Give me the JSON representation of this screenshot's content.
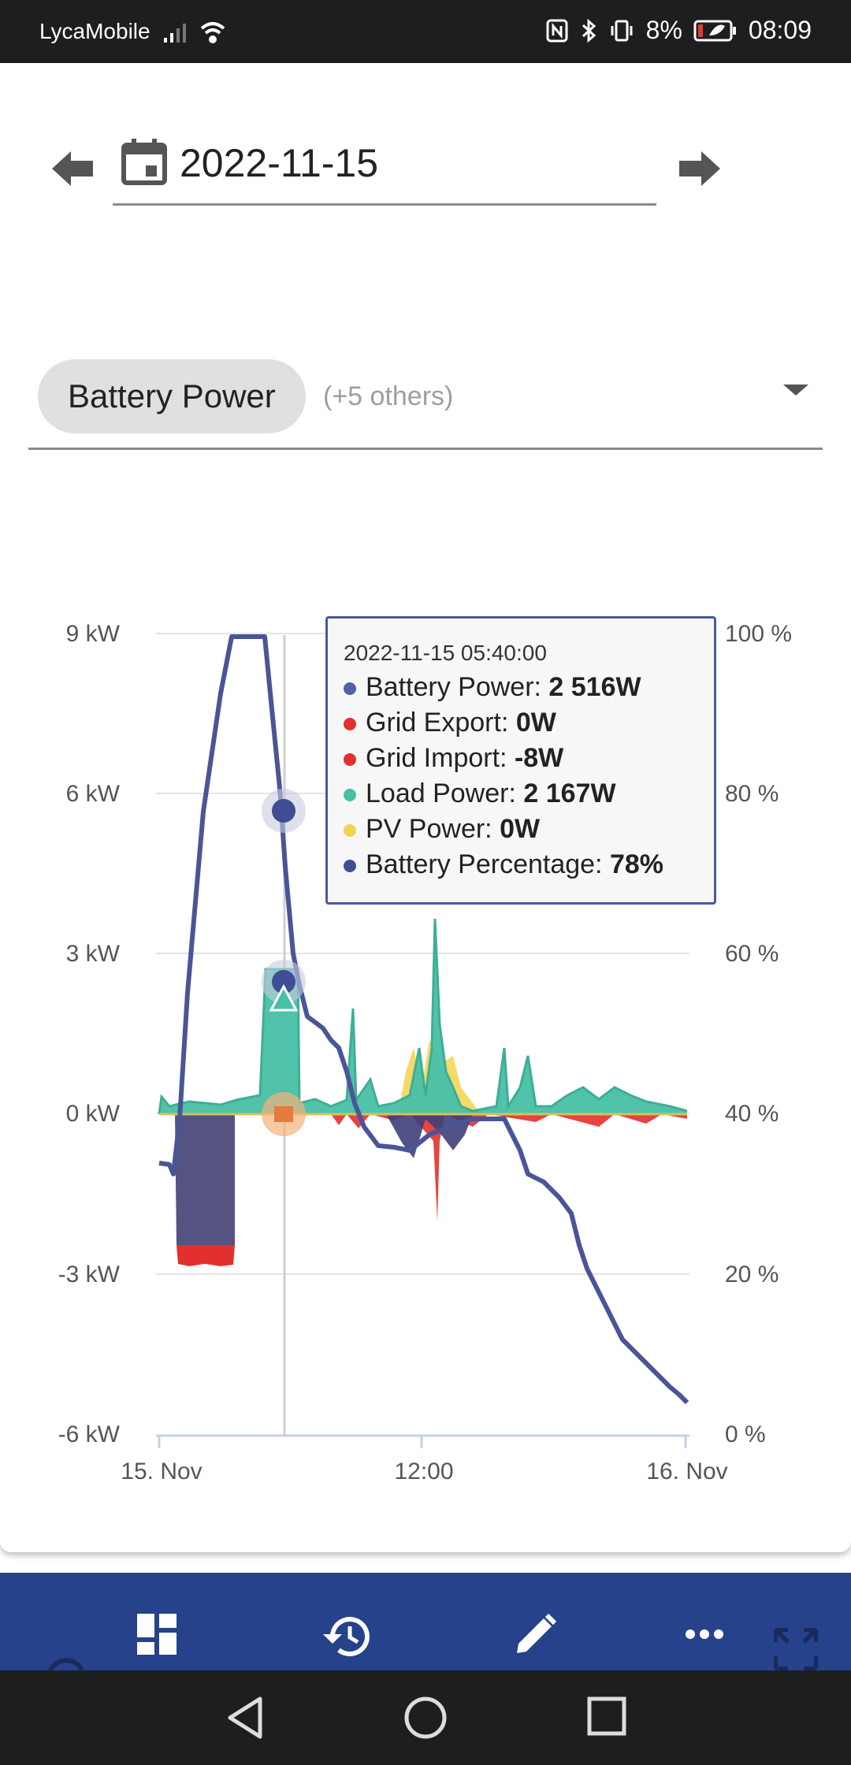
{
  "status_bar": {
    "carrier": "LycaMobile",
    "battery_percent": "8%",
    "time": "08:09",
    "icons": [
      "signal-icon",
      "wifi-icon",
      "nfc-icon",
      "bluetooth-icon",
      "vibrate-icon",
      "battery-saver-icon"
    ]
  },
  "date_nav": {
    "date": "2022-11-15",
    "prev_icon": "arrow-left-icon",
    "next_icon": "arrow-right-icon",
    "calendar_icon": "calendar-icon"
  },
  "entity_select": {
    "chip_label": "Battery Power",
    "others_label": "(+5 others)",
    "caret_icon": "dropdown-caret-icon"
  },
  "chart_data": {
    "type": "line",
    "y_left": {
      "ticks": [
        "9 kW",
        "6 kW",
        "3 kW",
        "0 kW",
        "-3 kW",
        "-6 kW"
      ],
      "ylim": [
        -6,
        9
      ]
    },
    "y_right": {
      "ticks": [
        "100 %",
        "80 %",
        "60 %",
        "40 %",
        "20 %",
        "0 %"
      ],
      "ylim": [
        0,
        100
      ]
    },
    "x": {
      "ticks": [
        "15. Nov",
        "12:00",
        "16. Nov"
      ]
    },
    "series": [
      {
        "name": "Battery Power",
        "color": "#5161a6"
      },
      {
        "name": "Grid Export",
        "color": "#e2302d"
      },
      {
        "name": "Grid Import",
        "color": "#e2302d"
      },
      {
        "name": "Load Power",
        "color": "#47c0a5"
      },
      {
        "name": "PV Power",
        "color": "#f4d44d"
      },
      {
        "name": "Battery Percentage",
        "color": "#3f4e94"
      }
    ],
    "tooltip": {
      "timestamp": "2022-11-15 05:40:00",
      "rows": [
        {
          "label": "Battery Power: ",
          "value": "2 516W",
          "color": "#5161a6"
        },
        {
          "label": "Grid Export: ",
          "value": "0W",
          "color": "#e2302d"
        },
        {
          "label": "Grid Import: ",
          "value": "-8W",
          "color": "#e2302d"
        },
        {
          "label": "Load Power: ",
          "value": "2 167W",
          "color": "#47c0a5"
        },
        {
          "label": "PV Power: ",
          "value": "0W",
          "color": "#f4d44d"
        },
        {
          "label": "Battery Percentage: ",
          "value": "78%",
          "color": "#3f4e94"
        }
      ]
    }
  },
  "app_bar": {
    "icons": [
      "refresh-icon",
      "dashboard-icon",
      "history-icon",
      "edit-icon",
      "more-icon",
      "fullscreen-icon"
    ]
  },
  "nav_bar": {
    "icons": [
      "back-icon",
      "home-icon",
      "recents-icon"
    ]
  }
}
